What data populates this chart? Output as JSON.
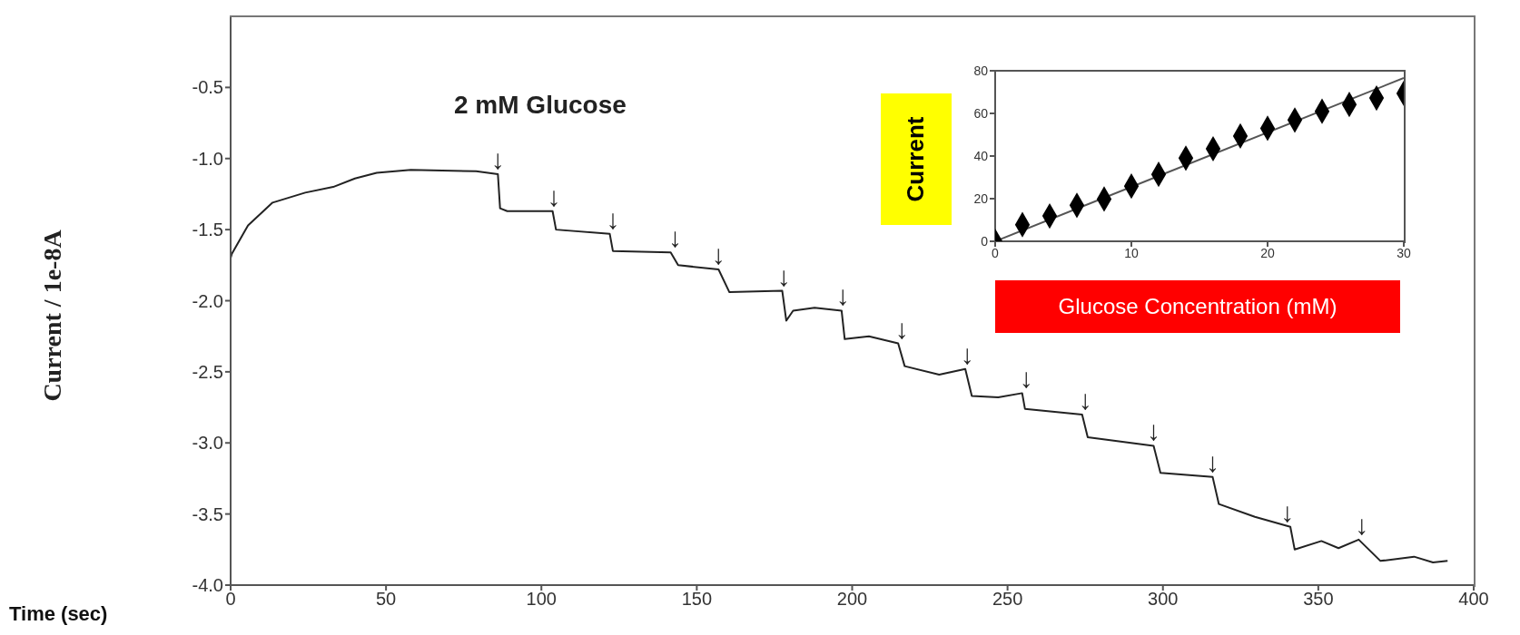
{
  "chart_data": [
    {
      "type": "line",
      "xlabel": "Time (sec)",
      "ylabel": "Current / 1e-8A",
      "x": [
        0,
        0.4,
        5.6,
        13.5,
        24,
        33,
        40,
        47,
        58,
        79,
        86,
        86.7,
        89,
        103.6,
        104.7,
        122,
        123,
        141.6,
        144,
        157,
        160.5,
        177.5,
        178.8,
        181,
        187.9,
        196.6,
        197.6,
        205.4,
        214.8,
        216.9,
        228,
        236.4,
        238.5,
        247,
        254.7,
        255.6,
        274,
        275.8,
        297,
        299.2,
        316,
        318,
        329.6,
        341,
        342.4,
        351,
        356.5,
        363,
        370,
        380.8,
        386.9,
        391.6
      ],
      "values": [
        -1.7,
        -1.67,
        -1.47,
        -1.31,
        -1.24,
        -1.2,
        -1.14,
        -1.1,
        -1.08,
        -1.09,
        -1.11,
        -1.35,
        -1.37,
        -1.37,
        -1.5,
        -1.53,
        -1.65,
        -1.66,
        -1.75,
        -1.78,
        -1.94,
        -1.93,
        -2.14,
        -2.07,
        -2.05,
        -2.07,
        -2.27,
        -2.25,
        -2.3,
        -2.46,
        -2.52,
        -2.48,
        -2.67,
        -2.68,
        -2.65,
        -2.76,
        -2.8,
        -2.96,
        -3.02,
        -3.21,
        -3.24,
        -3.43,
        -3.52,
        -3.59,
        -3.75,
        -3.69,
        -3.74,
        -3.68,
        -3.83,
        -3.8,
        -3.84,
        -3.83
      ],
      "color": "#222222",
      "xlim": [
        0,
        400
      ],
      "xticks": [
        0,
        50,
        100,
        150,
        200,
        250,
        300,
        350,
        400
      ],
      "ylim": [
        -4,
        0
      ],
      "yticks": [
        {
          "value": -4,
          "label": "-4.0"
        },
        -3.5,
        {
          "value": -3,
          "label": "-3.0"
        },
        -2.5,
        {
          "value": -2,
          "label": "-2.0"
        },
        -1.5,
        {
          "value": -1,
          "label": "-1.0"
        },
        -0.5
      ],
      "annotations": [
        "2 mM Glucose",
        {
          "text": "↓",
          "x": 86,
          "y": -1.11
        },
        {
          "text": "↓",
          "x": 104,
          "y": -1.37
        },
        {
          "text": "↓",
          "x": 123,
          "y": -1.53
        },
        {
          "text": "↓",
          "x": 143,
          "y": -1.66
        },
        {
          "text": "↓",
          "x": 157,
          "y": -1.78
        },
        {
          "text": "↓",
          "x": 178,
          "y": -1.93
        },
        {
          "text": "↓",
          "x": 197,
          "y": -2.07
        },
        {
          "text": "↓",
          "x": 216,
          "y": -2.3
        },
        {
          "text": "↓",
          "x": 237,
          "y": -2.48
        },
        {
          "text": "↓",
          "x": 256,
          "y": -2.65
        },
        {
          "text": "↓",
          "x": 275,
          "y": -2.8
        },
        {
          "text": "↓",
          "x": 297,
          "y": -3.02
        },
        {
          "text": "↓",
          "x": 316,
          "y": -3.24
        },
        {
          "text": "↓",
          "x": 340,
          "y": -3.59
        },
        {
          "text": "↓",
          "x": 364,
          "y": -3.68
        }
      ]
    },
    {
      "type": "scatter",
      "xlabel": "Glucose Concentration (mM)",
      "ylabel": "Current",
      "xlim": [
        0,
        30
      ],
      "xticks": [
        0,
        10,
        20,
        30
      ],
      "ylim": [
        0,
        80
      ],
      "yticks": [
        0,
        20,
        40,
        60,
        80
      ],
      "series": [
        {
          "color": "#000000",
          "marker": "diamond",
          "x": [
            0,
            2,
            4,
            6,
            8,
            10,
            12,
            14,
            16,
            18,
            20,
            22,
            24,
            26,
            28,
            30
          ],
          "values": [
            0,
            7.8,
            11.9,
            16.9,
            19.8,
            25.9,
            31.4,
            39,
            43.4,
            49.4,
            53,
            56.9,
            61,
            64.2,
            67.2,
            69.4
          ]
        },
        {
          "type": "line",
          "color": "#555555",
          "x": [
            0,
            30
          ],
          "values": [
            0,
            76.6
          ]
        }
      ]
    }
  ]
}
